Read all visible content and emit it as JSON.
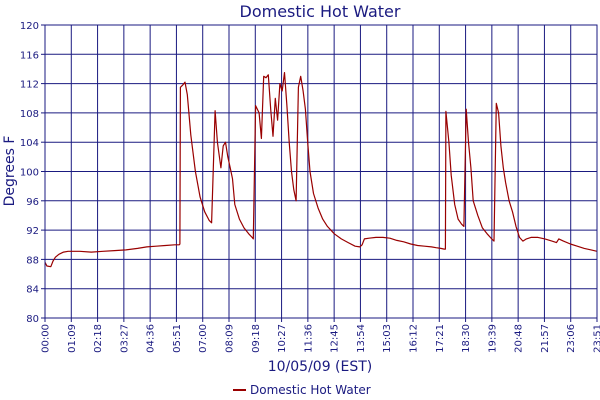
{
  "chart_data": {
    "type": "line",
    "title": "Domestic Hot Water",
    "xlabel": "10/05/09 (EST)",
    "ylabel": "Degrees F",
    "ylim": [
      80,
      120
    ],
    "yticks": [
      "80",
      "84",
      "88",
      "92",
      "96",
      "100",
      "104",
      "108",
      "112",
      "116",
      "120"
    ],
    "xticks": [
      "00:00",
      "01:09",
      "02:18",
      "03:27",
      "04:36",
      "05:51",
      "07:00",
      "08:09",
      "09:18",
      "10:27",
      "11:36",
      "12:45",
      "13:54",
      "15:03",
      "16:12",
      "17:21",
      "18:30",
      "19:39",
      "20:48",
      "21:57",
      "23:06",
      "23:51"
    ],
    "grid": true,
    "legend_position": "bottom",
    "series": [
      {
        "name": "Domestic Hot Water",
        "color": "#990000",
        "points": [
          [
            0,
            87.6
          ],
          [
            0.08,
            87.1
          ],
          [
            0.25,
            87.0
          ],
          [
            0.35,
            87.8
          ],
          [
            0.45,
            88.3
          ],
          [
            0.6,
            88.7
          ],
          [
            0.8,
            89.0
          ],
          [
            1.0,
            89.1
          ],
          [
            1.5,
            89.1
          ],
          [
            2.0,
            89.0
          ],
          [
            2.5,
            89.1
          ],
          [
            3.0,
            89.2
          ],
          [
            3.5,
            89.3
          ],
          [
            4.0,
            89.5
          ],
          [
            4.4,
            89.7
          ],
          [
            4.8,
            89.8
          ],
          [
            5.2,
            89.9
          ],
          [
            5.6,
            90.0
          ],
          [
            5.8,
            90.0
          ],
          [
            5.83,
            90.1
          ],
          [
            5.85,
            111.5
          ],
          [
            5.95,
            111.8
          ],
          [
            6.05,
            112.2
          ],
          [
            6.15,
            110.5
          ],
          [
            6.3,
            105.0
          ],
          [
            6.5,
            100.0
          ],
          [
            6.7,
            96.5
          ],
          [
            6.9,
            94.5
          ],
          [
            7.1,
            93.3
          ],
          [
            7.2,
            93.0
          ],
          [
            7.35,
            108.3
          ],
          [
            7.45,
            104.0
          ],
          [
            7.6,
            100.5
          ],
          [
            7.7,
            103.5
          ],
          [
            7.8,
            104.0
          ],
          [
            7.9,
            102.0
          ],
          [
            8.0,
            100.5
          ],
          [
            8.1,
            99.0
          ],
          [
            8.2,
            95.5
          ],
          [
            8.4,
            93.5
          ],
          [
            8.6,
            92.3
          ],
          [
            8.8,
            91.5
          ],
          [
            8.95,
            91.0
          ],
          [
            9.0,
            90.8
          ],
          [
            9.1,
            109.0
          ],
          [
            9.25,
            108.0
          ],
          [
            9.35,
            104.5
          ],
          [
            9.45,
            113.0
          ],
          [
            9.55,
            112.8
          ],
          [
            9.65,
            113.2
          ],
          [
            9.75,
            108.5
          ],
          [
            9.85,
            104.8
          ],
          [
            9.95,
            110.0
          ],
          [
            10.05,
            107.0
          ],
          [
            10.15,
            112.0
          ],
          [
            10.25,
            111.0
          ],
          [
            10.35,
            113.5
          ],
          [
            10.45,
            109.0
          ],
          [
            10.55,
            104.0
          ],
          [
            10.65,
            100.0
          ],
          [
            10.75,
            97.5
          ],
          [
            10.85,
            96.0
          ],
          [
            10.95,
            111.5
          ],
          [
            11.05,
            113.0
          ],
          [
            11.15,
            111.0
          ],
          [
            11.25,
            108.5
          ],
          [
            11.35,
            104.0
          ],
          [
            11.45,
            100.0
          ],
          [
            11.6,
            97.0
          ],
          [
            11.8,
            95.0
          ],
          [
            12.0,
            93.5
          ],
          [
            12.2,
            92.5
          ],
          [
            12.5,
            91.5
          ],
          [
            12.8,
            90.8
          ],
          [
            13.1,
            90.3
          ],
          [
            13.4,
            89.8
          ],
          [
            13.6,
            89.7
          ],
          [
            13.7,
            90.0
          ],
          [
            13.8,
            90.8
          ],
          [
            14.0,
            90.9
          ],
          [
            14.3,
            91.0
          ],
          [
            14.6,
            91.0
          ],
          [
            14.9,
            90.9
          ],
          [
            15.2,
            90.6
          ],
          [
            15.5,
            90.4
          ],
          [
            15.8,
            90.1
          ],
          [
            16.1,
            89.9
          ],
          [
            16.4,
            89.8
          ],
          [
            16.7,
            89.7
          ],
          [
            16.9,
            89.6
          ],
          [
            17.1,
            89.5
          ],
          [
            17.25,
            89.4
          ],
          [
            17.3,
            89.4
          ],
          [
            17.32,
            108.2
          ],
          [
            17.45,
            104.0
          ],
          [
            17.55,
            99.5
          ],
          [
            17.7,
            95.5
          ],
          [
            17.85,
            93.5
          ],
          [
            18.0,
            92.8
          ],
          [
            18.1,
            92.5
          ],
          [
            18.2,
            108.5
          ],
          [
            18.3,
            104.0
          ],
          [
            18.4,
            100.5
          ],
          [
            18.5,
            96.0
          ],
          [
            18.7,
            94.0
          ],
          [
            18.9,
            92.3
          ],
          [
            19.1,
            91.5
          ],
          [
            19.3,
            90.8
          ],
          [
            19.4,
            90.5
          ],
          [
            19.5,
            109.3
          ],
          [
            19.6,
            108.0
          ],
          [
            19.7,
            103.5
          ],
          [
            19.8,
            100.5
          ],
          [
            19.9,
            98.5
          ],
          [
            20.05,
            96.0
          ],
          [
            20.2,
            94.5
          ],
          [
            20.35,
            92.5
          ],
          [
            20.5,
            91.0
          ],
          [
            20.65,
            90.5
          ],
          [
            20.8,
            90.8
          ],
          [
            21.0,
            91.0
          ],
          [
            21.3,
            91.0
          ],
          [
            21.6,
            90.8
          ],
          [
            21.9,
            90.5
          ],
          [
            22.1,
            90.3
          ],
          [
            22.2,
            90.8
          ],
          [
            22.4,
            90.5
          ],
          [
            22.7,
            90.1
          ],
          [
            23.0,
            89.8
          ],
          [
            23.3,
            89.5
          ],
          [
            23.6,
            89.3
          ],
          [
            23.85,
            89.1
          ]
        ]
      }
    ]
  }
}
